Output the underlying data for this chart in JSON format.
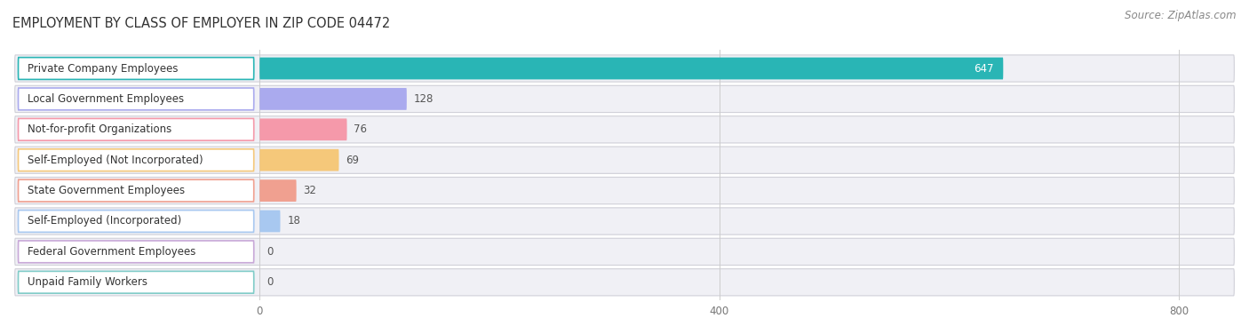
{
  "title": "EMPLOYMENT BY CLASS OF EMPLOYER IN ZIP CODE 04472",
  "source": "Source: ZipAtlas.com",
  "categories": [
    "Private Company Employees",
    "Local Government Employees",
    "Not-for-profit Organizations",
    "Self-Employed (Not Incorporated)",
    "State Government Employees",
    "Self-Employed (Incorporated)",
    "Federal Government Employees",
    "Unpaid Family Workers"
  ],
  "values": [
    647,
    128,
    76,
    69,
    32,
    18,
    0,
    0
  ],
  "bar_colors": [
    "#29b5b5",
    "#aaaaee",
    "#f599aa",
    "#f5c87a",
    "#f0a090",
    "#a8c8f0",
    "#c8a8d8",
    "#80ccc8"
  ],
  "row_bg_color": "#e8e8ee",
  "row_inner_bg": "#f5f5f8",
  "xlim_data_max": 800,
  "xticks": [
    0,
    400,
    800
  ],
  "title_fontsize": 10.5,
  "source_fontsize": 8.5,
  "bar_label_fontsize": 8.5,
  "category_fontsize": 8.5,
  "background_color": "#ffffff",
  "value_647_color": "#ffffff",
  "value_other_color": "#555555"
}
